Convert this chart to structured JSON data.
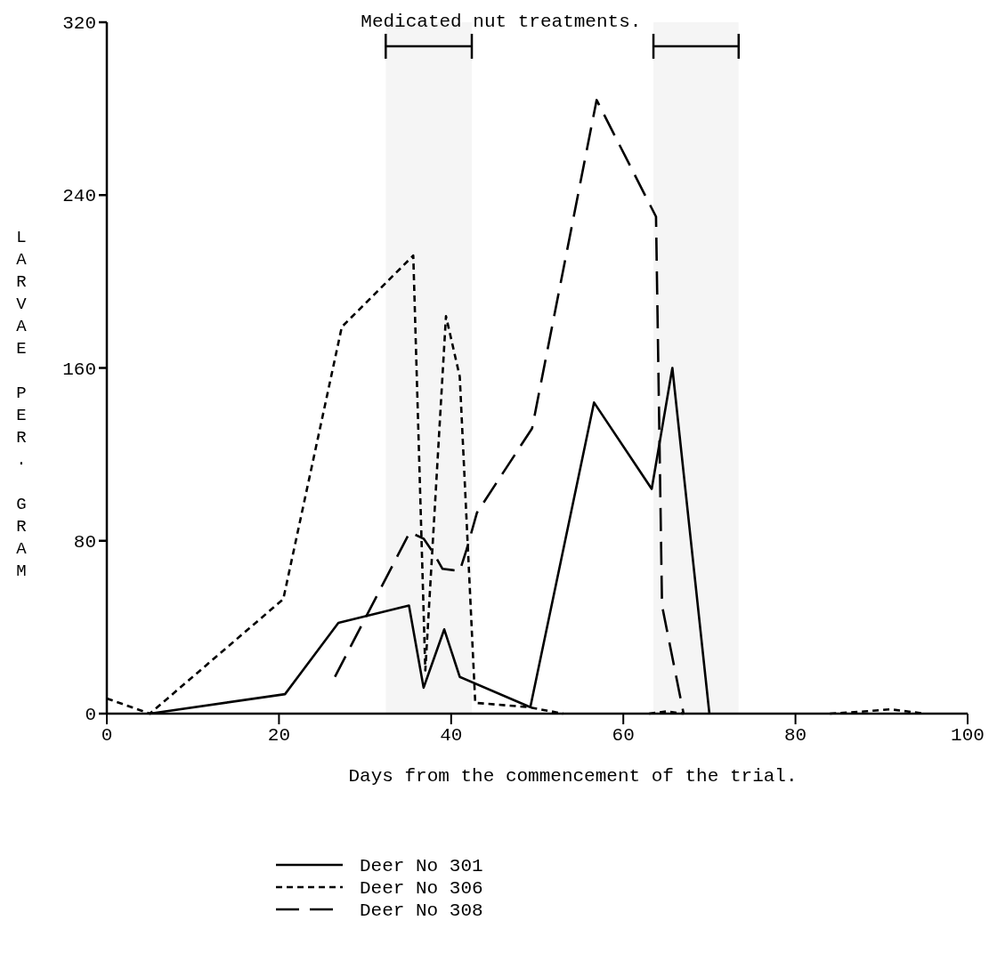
{
  "chart_data": {
    "type": "line",
    "xlabel": "Days from the commencement of the trial.",
    "ylabel": "LARVAE PER. GRAM",
    "xlim": [
      0,
      100
    ],
    "ylim": [
      0,
      320
    ],
    "xticks": [
      0,
      20,
      40,
      60,
      80,
      100
    ],
    "yticks": [
      0,
      80,
      160,
      240,
      320
    ],
    "grid": false,
    "legend": "bottom",
    "marker": "none",
    "bands": [
      {
        "axis": "x",
        "from": 32.4,
        "to": 42.4,
        "label": "Medicated nut treatments."
      },
      {
        "axis": "x",
        "from": 63.5,
        "to": 73.4
      }
    ],
    "series": [
      {
        "name": "Deer No 301",
        "color": "#000000",
        "line_style": "solid",
        "x": [
          5,
          20.7,
          26.9,
          35.1,
          36.8,
          39.2,
          41,
          49.2,
          56.6,
          63.3,
          65.7,
          70
        ],
        "values": [
          0,
          9,
          42,
          50,
          12,
          39,
          17,
          3,
          144,
          104,
          160,
          0
        ]
      },
      {
        "name": "Deer No 306",
        "color": "#000000",
        "line_style": "dotted",
        "x": [
          0,
          5,
          20.5,
          27.3,
          35.6,
          37,
          39.4,
          41,
          42.8,
          49,
          53,
          58,
          63,
          65,
          67,
          75,
          84,
          88,
          91,
          93,
          95
        ],
        "values": [
          7,
          0,
          53,
          179,
          212,
          20,
          184,
          156,
          5,
          3,
          0,
          null,
          0,
          1,
          0,
          null,
          0,
          1,
          2,
          1,
          0
        ]
      },
      {
        "name": "Deer No 308",
        "color": "#000000",
        "line_style": "dashed",
        "x": [
          26.5,
          35.2,
          36.8,
          38,
          39,
          41,
          41.8,
          43,
          49.4,
          56.9,
          63.8,
          64.5,
          67
        ],
        "values": [
          17,
          84,
          81,
          74,
          67,
          66,
          76,
          93,
          132,
          284,
          230,
          50,
          0
        ]
      }
    ]
  }
}
